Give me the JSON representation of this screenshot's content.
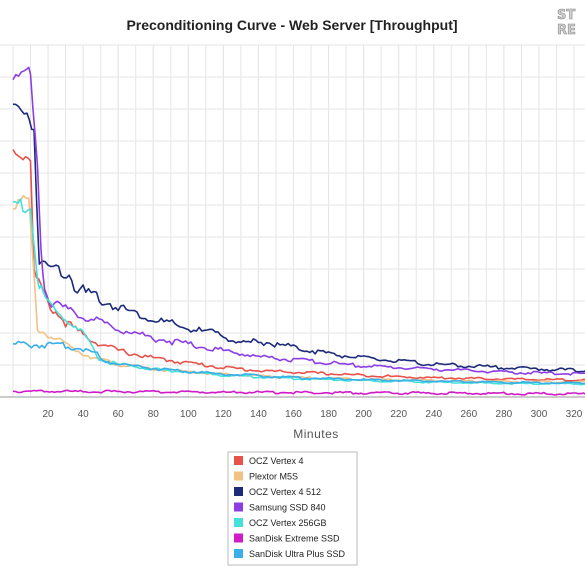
{
  "chart_data": {
    "type": "line",
    "title": "Preconditioning Curve - Web Server [Throughput]",
    "xlabel": "Minutes",
    "ylabel": "",
    "xlim": [
      0,
      330
    ],
    "ylim": [
      0,
      110
    ],
    "grid": true,
    "legend_position": "bottom-center",
    "x_ticks": [
      20,
      40,
      60,
      80,
      100,
      120,
      140,
      160,
      180,
      200,
      220,
      240,
      260,
      280,
      300,
      320
    ],
    "series": [
      {
        "name": "OCZ Vertex 4",
        "color": "#e8524a",
        "points": [
          [
            0,
            78
          ],
          [
            10,
            76
          ],
          [
            12,
            40
          ],
          [
            16,
            35
          ],
          [
            20,
            30
          ],
          [
            30,
            24
          ],
          [
            40,
            20
          ],
          [
            50,
            17
          ],
          [
            60,
            15
          ],
          [
            80,
            12.5
          ],
          [
            100,
            11
          ],
          [
            120,
            9.5
          ],
          [
            140,
            8.5
          ],
          [
            160,
            8
          ],
          [
            180,
            7.5
          ],
          [
            200,
            7
          ],
          [
            220,
            6.5
          ],
          [
            240,
            6.2
          ],
          [
            260,
            6
          ],
          [
            280,
            5.8
          ],
          [
            300,
            5.6
          ],
          [
            330,
            5.5
          ]
        ]
      },
      {
        "name": "Plextor M5S",
        "color": "#f2c186",
        "points": [
          [
            0,
            62
          ],
          [
            9,
            62
          ],
          [
            14,
            22
          ],
          [
            20,
            20
          ],
          [
            30,
            17
          ],
          [
            40,
            14
          ],
          [
            50,
            12
          ],
          [
            60,
            10.5
          ],
          [
            80,
            9
          ],
          [
            100,
            8
          ],
          [
            120,
            7.3
          ],
          [
            140,
            6.8
          ],
          [
            160,
            6.3
          ],
          [
            180,
            6
          ],
          [
            200,
            5.7
          ],
          [
            220,
            5.5
          ],
          [
            240,
            5.3
          ],
          [
            260,
            5.1
          ],
          [
            280,
            5
          ],
          [
            300,
            4.9
          ],
          [
            330,
            4.8
          ]
        ]
      },
      {
        "name": "OCZ Vertex 4 512",
        "color": "#1c2a7a",
        "points": [
          [
            0,
            92
          ],
          [
            8,
            90
          ],
          [
            12,
            85
          ],
          [
            15,
            42
          ],
          [
            20,
            42
          ],
          [
            32,
            40
          ],
          [
            35,
            36
          ],
          [
            40,
            34
          ],
          [
            60,
            29
          ],
          [
            80,
            25
          ],
          [
            100,
            22
          ],
          [
            120,
            20
          ],
          [
            130,
            17
          ],
          [
            140,
            18
          ],
          [
            160,
            16
          ],
          [
            180,
            14
          ],
          [
            200,
            12.5
          ],
          [
            220,
            11.5
          ],
          [
            240,
            10.5
          ],
          [
            260,
            10
          ],
          [
            280,
            9.5
          ],
          [
            300,
            9
          ],
          [
            330,
            8.5
          ]
        ]
      },
      {
        "name": "Samsung SSD 840",
        "color": "#8c3ee6",
        "points": [
          [
            0,
            102
          ],
          [
            8,
            103
          ],
          [
            10,
            101
          ],
          [
            14,
            72
          ],
          [
            16,
            48
          ],
          [
            18,
            36
          ],
          [
            22,
            30
          ],
          [
            30,
            28
          ],
          [
            40,
            26
          ],
          [
            60,
            22
          ],
          [
            80,
            19
          ],
          [
            100,
            17
          ],
          [
            120,
            15
          ],
          [
            140,
            13
          ],
          [
            160,
            12
          ],
          [
            180,
            11
          ],
          [
            200,
            10
          ],
          [
            220,
            9.5
          ],
          [
            240,
            9
          ],
          [
            260,
            8.5
          ],
          [
            280,
            8
          ],
          [
            300,
            7.7
          ],
          [
            330,
            7.5
          ]
        ]
      },
      {
        "name": "OCZ Vertex 256GB",
        "color": "#45e0db",
        "points": [
          [
            0,
            62
          ],
          [
            10,
            60
          ],
          [
            14,
            38
          ],
          [
            16,
            34
          ],
          [
            20,
            30
          ],
          [
            30,
            25
          ],
          [
            40,
            20
          ],
          [
            45,
            16
          ],
          [
            48,
            13
          ],
          [
            50,
            12
          ],
          [
            60,
            10.5
          ],
          [
            80,
            9
          ],
          [
            100,
            8
          ],
          [
            120,
            7
          ],
          [
            140,
            6.5
          ],
          [
            160,
            6
          ],
          [
            180,
            5.6
          ],
          [
            200,
            5.3
          ],
          [
            220,
            5
          ],
          [
            240,
            4.8
          ],
          [
            260,
            4.6
          ],
          [
            280,
            4.4
          ],
          [
            300,
            4.3
          ],
          [
            330,
            4.2
          ]
        ]
      },
      {
        "name": "SanDisk Extreme SSD",
        "color": "#d11bc8",
        "points": [
          [
            0,
            2
          ],
          [
            40,
            1.9
          ],
          [
            80,
            1.8
          ],
          [
            120,
            1.7
          ],
          [
            160,
            1.6
          ],
          [
            200,
            1.5
          ],
          [
            240,
            1.4
          ],
          [
            280,
            1.3
          ],
          [
            330,
            1.2
          ]
        ]
      },
      {
        "name": "SanDisk Ultra Plus SSD",
        "color": "#3aaee8",
        "points": [
          [
            0,
            17
          ],
          [
            30,
            16.5
          ],
          [
            40,
            15.5
          ],
          [
            48,
            14
          ],
          [
            50,
            12
          ],
          [
            60,
            10.8
          ],
          [
            80,
            9.2
          ],
          [
            100,
            8.2
          ],
          [
            120,
            7.4
          ],
          [
            140,
            6.8
          ],
          [
            160,
            6.3
          ],
          [
            180,
            5.9
          ],
          [
            200,
            5.6
          ],
          [
            220,
            5.3
          ],
          [
            240,
            5.1
          ],
          [
            260,
            4.9
          ],
          [
            280,
            4.7
          ],
          [
            300,
            4.6
          ],
          [
            330,
            4.5
          ]
        ]
      }
    ]
  },
  "logo": {
    "line1": "ST",
    "line2": "RE"
  }
}
